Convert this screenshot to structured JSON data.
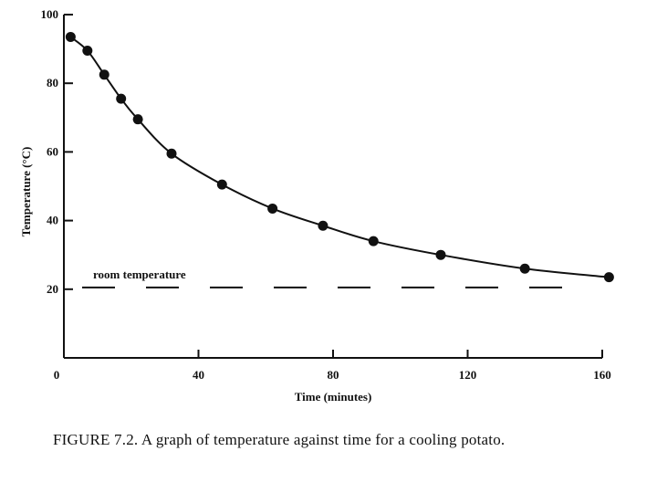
{
  "caption": "FIGURE 7.2. A graph of temperature against time for a cooling potato.",
  "chart_data": {
    "type": "scatter",
    "title": "",
    "xlabel": "Time (minutes)",
    "ylabel": "Temperature (°C)",
    "xlim": [
      0,
      160
    ],
    "ylim": [
      0,
      100
    ],
    "x_ticks": [
      0,
      40,
      80,
      120,
      160
    ],
    "y_ticks": [
      20,
      40,
      60,
      80,
      100
    ],
    "grid": false,
    "legend": "none",
    "series": [
      {
        "points": [
          [
            2,
            93.5
          ],
          [
            7,
            89.5
          ],
          [
            12,
            82.5
          ],
          [
            17,
            75.5
          ],
          [
            22,
            69.5
          ],
          [
            32,
            59.5
          ],
          [
            47,
            50.5
          ],
          [
            62,
            43.5
          ],
          [
            77,
            38.5
          ],
          [
            92,
            34
          ],
          [
            112,
            30
          ],
          [
            137,
            26
          ],
          [
            162,
            23.5
          ]
        ],
        "fitted_curve": true,
        "color": "#111111"
      }
    ],
    "reference_line": {
      "y": 20.5,
      "style": "dashed",
      "label": "room temperature"
    }
  }
}
